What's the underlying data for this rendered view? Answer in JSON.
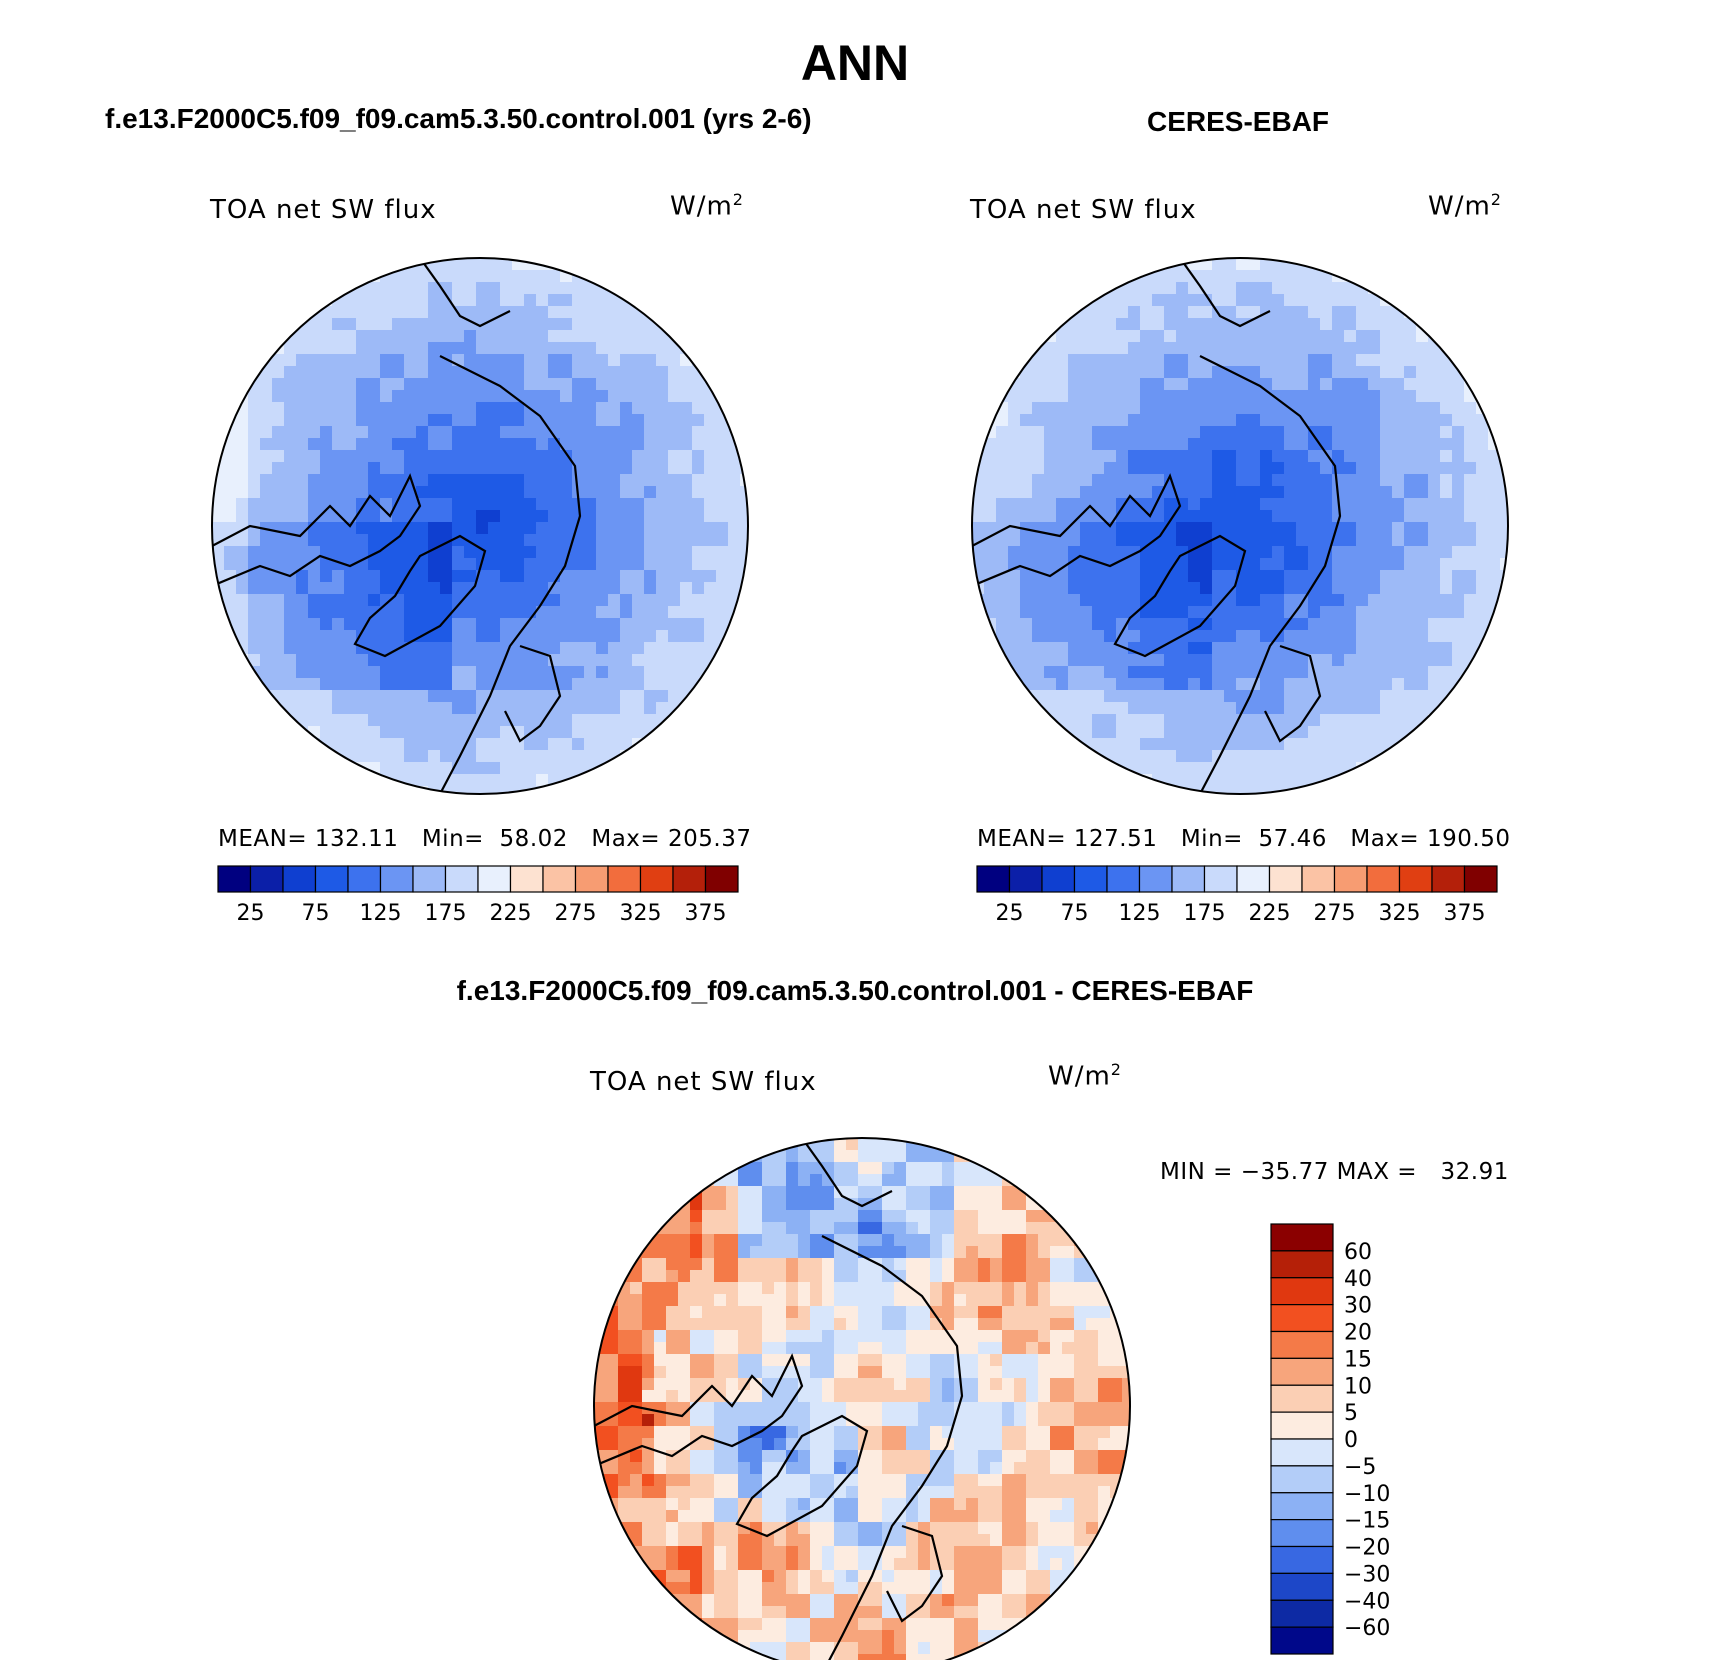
{
  "page_title": "ANN",
  "chart_data": [
    {
      "type": "heatmap",
      "panel": "model",
      "title": "f.e13.F2000C5.f09_f09.cam5.3.50.control.001 (yrs 2-6)",
      "variable": "TOA net SW flux",
      "units_base": "W/m",
      "units_exp": "2",
      "stats": {
        "mean_label": "MEAN=",
        "mean": "132.11",
        "min_label": "Min=",
        "min": "58.02",
        "max_label": "Max=",
        "max": "205.37"
      },
      "levels": [
        25,
        50,
        75,
        100,
        125,
        150,
        175,
        200,
        225,
        250,
        275,
        300,
        325,
        350,
        375
      ],
      "tick_labels": [
        "25",
        "75",
        "125",
        "175",
        "225",
        "275",
        "325",
        "375"
      ],
      "colors": [
        "#000080",
        "#0b1fa8",
        "#0f3fd0",
        "#1e5ae6",
        "#3d72ee",
        "#6b95f3",
        "#9dbaf7",
        "#c9dafb",
        "#e8f0fd",
        "#fde2d1",
        "#fbc3a5",
        "#f79c72",
        "#f26d3d",
        "#e03f12",
        "#b4200a",
        "#800000"
      ]
    },
    {
      "type": "heatmap",
      "panel": "obs",
      "title": "CERES-EBAF",
      "variable": "TOA net SW flux",
      "units_base": "W/m",
      "units_exp": "2",
      "stats": {
        "mean_label": "MEAN=",
        "mean": "127.51",
        "min_label": "Min=",
        "min": "57.46",
        "max_label": "Max=",
        "max": "190.50"
      },
      "levels": [
        25,
        50,
        75,
        100,
        125,
        150,
        175,
        200,
        225,
        250,
        275,
        300,
        325,
        350,
        375
      ],
      "tick_labels": [
        "25",
        "75",
        "125",
        "175",
        "225",
        "275",
        "325",
        "375"
      ],
      "colors": [
        "#000080",
        "#0b1fa8",
        "#0f3fd0",
        "#1e5ae6",
        "#3d72ee",
        "#6b95f3",
        "#9dbaf7",
        "#c9dafb",
        "#e8f0fd",
        "#fde2d1",
        "#fbc3a5",
        "#f79c72",
        "#f26d3d",
        "#e03f12",
        "#b4200a",
        "#800000"
      ]
    },
    {
      "type": "heatmap",
      "panel": "diff",
      "title": "f.e13.F2000C5.f09_f09.cam5.3.50.control.001 - CERES-EBAF",
      "variable": "TOA net SW flux",
      "units_base": "W/m",
      "units_exp": "2",
      "stats_text": "MIN = −35.77 MAX =   32.91",
      "levels": [
        60,
        40,
        30,
        20,
        15,
        10,
        5,
        0,
        -5,
        -10,
        -15,
        -20,
        -30,
        -40,
        -60
      ],
      "tick_labels": [
        "60",
        "40",
        "30",
        "20",
        "15",
        "10",
        "5",
        "0",
        "−5",
        "−10",
        "−15",
        "−20",
        "−30",
        "−40",
        "−60"
      ],
      "colors": [
        "#8b0000",
        "#b52008",
        "#e03810",
        "#f25020",
        "#f47a48",
        "#f7a57c",
        "#fbcfb4",
        "#fdece0",
        "#d8e6fb",
        "#b3cdf8",
        "#8cb1f4",
        "#5f8eee",
        "#3868e2",
        "#1d47c8",
        "#0d2aa4",
        "#00088a"
      ]
    }
  ]
}
